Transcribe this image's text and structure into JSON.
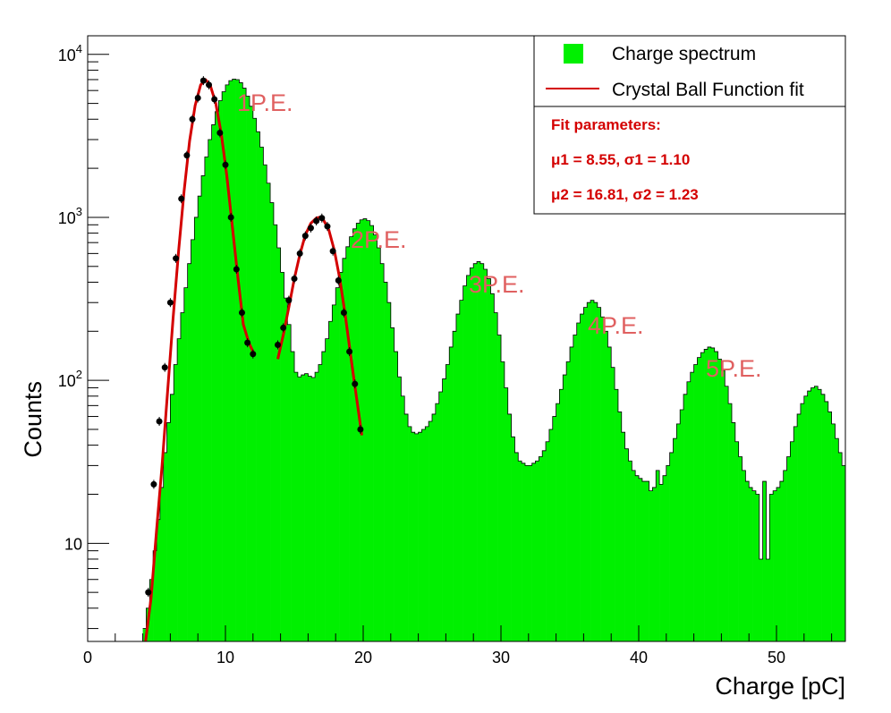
{
  "chart_data": {
    "type": "bar",
    "xlabel": "Charge [pC]",
    "ylabel": "Counts",
    "xlim": [
      0,
      55
    ],
    "ylim": [
      2.5,
      13000
    ],
    "yscale": "log",
    "x_ticks": [
      0,
      10,
      20,
      30,
      40,
      50
    ],
    "y_ticks": [
      {
        "value": 10,
        "base": "10",
        "exp": ""
      },
      {
        "value": 100,
        "base": "10",
        "exp": "2"
      },
      {
        "value": 1000,
        "base": "10",
        "exp": "3"
      },
      {
        "value": 10000,
        "base": "10",
        "exp": "4"
      }
    ],
    "grid": false,
    "legend_position": "top-right",
    "colors": {
      "histogram": "#00f000",
      "fit": "#d40000",
      "points": "#000000",
      "annotation": "#e06060"
    },
    "series": [
      {
        "name": "Charge spectrum",
        "kind": "histogram",
        "bin_start": 4.0,
        "bin_width": 0.25,
        "values": [
          3,
          4,
          6,
          9,
          14,
          22,
          36,
          55,
          82,
          125,
          180,
          260,
          370,
          520,
          730,
          1000,
          1350,
          1800,
          2350,
          3000,
          3700,
          4450,
          5200,
          5900,
          6500,
          6900,
          7050,
          7000,
          6700,
          6200,
          5550,
          4800,
          4050,
          3350,
          2700,
          2100,
          1620,
          1230,
          900,
          650,
          460,
          320,
          220,
          150,
          112,
          105,
          108,
          110,
          106,
          104,
          112,
          125,
          150,
          180,
          230,
          290,
          370,
          460,
          560,
          660,
          760,
          850,
          920,
          965,
          980,
          955,
          890,
          780,
          650,
          520,
          400,
          300,
          210,
          150,
          105,
          80,
          62,
          52,
          48,
          47,
          48,
          50,
          52,
          56,
          62,
          72,
          85,
          102,
          125,
          160,
          200,
          255,
          310,
          380,
          440,
          490,
          520,
          535,
          520,
          480,
          420,
          340,
          260,
          190,
          130,
          90,
          62,
          45,
          36,
          32,
          31,
          30,
          30,
          31,
          32,
          34,
          37,
          42,
          50,
          60,
          72,
          88,
          108,
          130,
          160,
          190,
          225,
          255,
          280,
          300,
          310,
          300,
          280,
          245,
          200,
          160,
          120,
          88,
          64,
          48,
          38,
          32,
          28,
          26,
          25,
          24,
          24,
          21,
          22,
          28,
          23,
          26,
          30,
          36,
          44,
          54,
          66,
          82,
          98,
          112,
          125,
          138,
          148,
          155,
          160,
          158,
          150,
          135,
          115,
          92,
          72,
          55,
          42,
          34,
          28,
          24,
          22,
          21,
          20,
          8,
          24,
          8,
          20,
          21,
          22,
          24,
          28,
          34,
          42,
          52,
          62,
          72,
          80,
          86,
          90,
          92,
          88,
          82,
          74,
          64,
          54,
          44,
          36,
          30,
          26,
          22,
          20,
          18,
          17,
          15,
          14
        ]
      },
      {
        "name": "Crystal Ball Function fit",
        "kind": "line",
        "x": [
          4.2,
          4.6,
          5.0,
          5.4,
          5.8,
          6.2,
          6.6,
          7.0,
          7.4,
          7.8,
          8.2,
          8.55,
          8.9,
          9.3,
          9.7,
          10.1,
          10.5,
          10.9,
          11.3,
          11.7,
          12.0,
          null,
          13.8,
          14.2,
          14.6,
          15.0,
          15.4,
          15.8,
          16.2,
          16.6,
          16.81,
          17.1,
          17.5,
          17.9,
          18.3,
          18.7,
          19.1,
          19.5,
          19.9
        ],
        "values": [
          2.5,
          4.6,
          12,
          30,
          85,
          240,
          620,
          1450,
          2950,
          4850,
          6500,
          7000,
          6450,
          5000,
          3250,
          1800,
          880,
          430,
          220,
          170,
          150,
          null,
          135,
          190,
          280,
          420,
          590,
          780,
          920,
          990,
          1000,
          970,
          840,
          630,
          420,
          250,
          140,
          80,
          46
        ]
      },
      {
        "name": "fit data points",
        "kind": "points",
        "x": [
          4.4,
          4.8,
          5.2,
          5.6,
          6.0,
          6.4,
          6.8,
          7.2,
          7.6,
          8.0,
          8.4,
          8.8,
          9.2,
          9.6,
          10.0,
          10.4,
          10.8,
          11.2,
          11.6,
          12.0,
          13.8,
          14.2,
          14.6,
          15.0,
          15.4,
          15.8,
          16.2,
          16.6,
          17.0,
          17.4,
          17.8,
          18.2,
          18.6,
          19.0,
          19.4,
          19.8
        ],
        "values": [
          5,
          23,
          56,
          120,
          300,
          560,
          1300,
          2400,
          4000,
          5400,
          6900,
          6500,
          5300,
          3300,
          2100,
          1000,
          480,
          260,
          170,
          145,
          165,
          210,
          310,
          420,
          600,
          770,
          860,
          950,
          990,
          880,
          620,
          410,
          260,
          150,
          95,
          50
        ]
      }
    ],
    "annotations": [
      "1P.E.",
      "2P.E.",
      "3P.E.",
      "4P.E.",
      "5P.E."
    ],
    "legend": {
      "entries": [
        "Charge spectrum",
        "Crystal Ball Function fit"
      ],
      "fit_title": "Fit parameters:",
      "fit_line1": "μ1 = 8.55,  σ1 = 1.10",
      "fit_line2": "μ2 = 16.81,  σ2 = 1.23"
    }
  }
}
